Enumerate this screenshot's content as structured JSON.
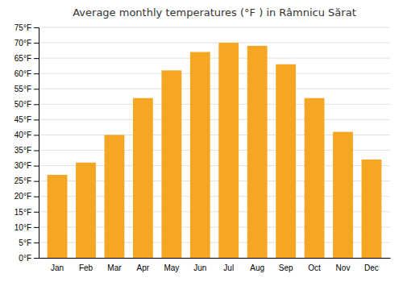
{
  "chart_data": {
    "type": "bar",
    "title": "Average monthly temperatures (°F ) in Râmnicu Sărat",
    "categories": [
      "Jan",
      "Feb",
      "Mar",
      "Apr",
      "May",
      "Jun",
      "Jul",
      "Aug",
      "Sep",
      "Oct",
      "Nov",
      "Dec"
    ],
    "values": [
      27,
      31,
      40,
      52,
      61,
      67,
      70,
      69,
      63,
      52,
      41,
      32
    ],
    "color": "#F5A623",
    "ylim": [
      0,
      75
    ],
    "yticks": [
      {
        "value": 0,
        "label": "0°F"
      },
      {
        "value": 5,
        "label": "5°F"
      },
      {
        "value": 10,
        "label": "10°F"
      },
      {
        "value": 15,
        "label": "15°F"
      },
      {
        "value": 20,
        "label": "20°F"
      },
      {
        "value": 25,
        "label": "25°F"
      },
      {
        "value": 30,
        "label": "30°F"
      },
      {
        "value": 35,
        "label": "35°F"
      },
      {
        "value": 40,
        "label": "40°F"
      },
      {
        "value": 45,
        "label": "45°F"
      },
      {
        "value": 50,
        "label": "50°F"
      },
      {
        "value": 55,
        "label": "55°F"
      },
      {
        "value": 60,
        "label": "60°F"
      },
      {
        "value": 65,
        "label": "65°F"
      },
      {
        "value": 70,
        "label": "70°F"
      },
      {
        "value": 75,
        "label": "75°F"
      }
    ],
    "grid": true
  }
}
